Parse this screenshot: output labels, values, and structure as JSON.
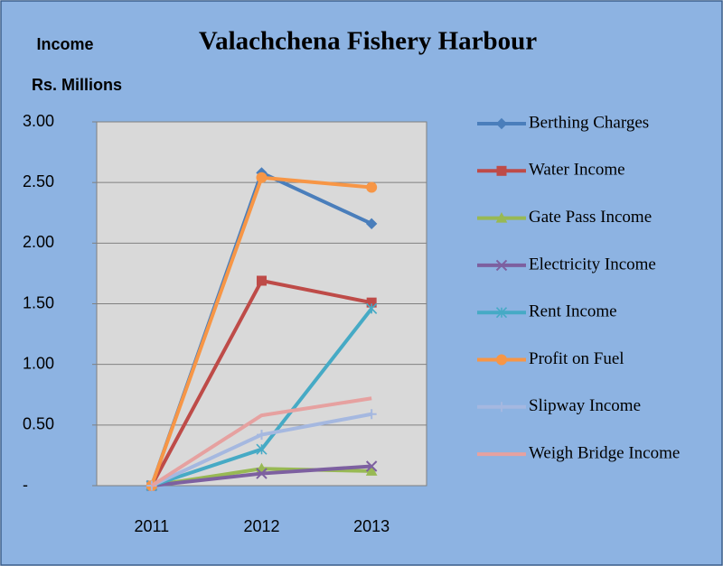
{
  "chart_data": {
    "type": "line",
    "title": "Valachchena Fishery Harbour",
    "y_label_top": "Income",
    "y_label": "Rs. Millions",
    "categories": [
      "2011",
      "2012",
      "2013"
    ],
    "ylim": [
      0,
      3
    ],
    "yticks": [
      {
        "value": 0,
        "label": "-"
      },
      {
        "value": 0.5,
        "label": "0.50"
      },
      {
        "value": 1,
        "label": "1.00"
      },
      {
        "value": 1.5,
        "label": "1.50"
      },
      {
        "value": 2,
        "label": "2.00"
      },
      {
        "value": 2.5,
        "label": "2.50"
      },
      {
        "value": 3,
        "label": "3.00"
      }
    ],
    "grid": true,
    "legend": "right",
    "series": [
      {
        "name": "Berthing Charges",
        "color": "#4a7ebb",
        "marker": "diamond",
        "values": [
          0,
          2.58,
          2.16
        ]
      },
      {
        "name": "Water Income",
        "color": "#be4b48",
        "marker": "square",
        "values": [
          0,
          1.69,
          1.51
        ]
      },
      {
        "name": "Gate Pass Income",
        "color": "#98b954",
        "marker": "triangle",
        "values": [
          0,
          0.14,
          0.12
        ]
      },
      {
        "name": "Electricity Income",
        "color": "#7d60a0",
        "marker": "x",
        "values": [
          0,
          0.1,
          0.16
        ]
      },
      {
        "name": "Rent Income",
        "color": "#46aac5",
        "marker": "asterisk",
        "values": [
          0,
          0.3,
          1.46
        ]
      },
      {
        "name": "Profit on Fuel",
        "color": "#f79646",
        "marker": "circle",
        "values": [
          0,
          2.54,
          2.46
        ]
      },
      {
        "name": "Slipway Income",
        "color": "#a5b8e0",
        "marker": "plus",
        "values": [
          0,
          0.42,
          0.59
        ]
      },
      {
        "name": "Weigh Bridge Income",
        "color": "#e6a1a0",
        "marker": "none",
        "values": [
          0,
          0.58,
          0.72
        ]
      }
    ]
  }
}
